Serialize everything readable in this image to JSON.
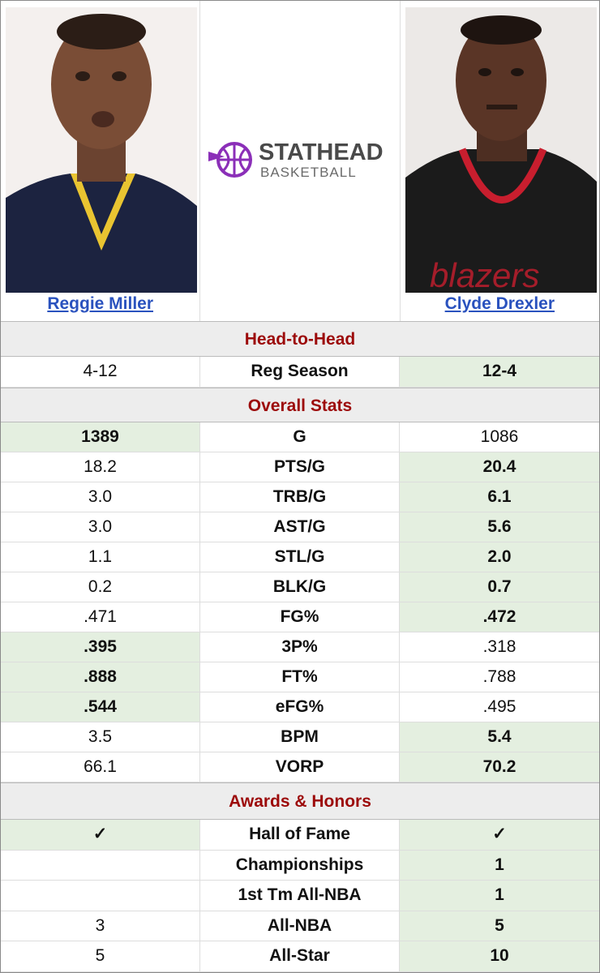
{
  "logo": {
    "line1": "STATHEAD",
    "line2": "BASKETBALL"
  },
  "players": [
    "Reggie Miller",
    "Clyde Drexler"
  ],
  "sections": [
    {
      "title": "Head-to-Head",
      "rows": [
        {
          "label": "Reg Season",
          "left": "4-12",
          "right": "12-4",
          "leader": "right"
        }
      ]
    },
    {
      "title": "Overall Stats",
      "rows": [
        {
          "label": "G",
          "left": "1389",
          "right": "1086",
          "leader": "left"
        },
        {
          "label": "PTS/G",
          "left": "18.2",
          "right": "20.4",
          "leader": "right"
        },
        {
          "label": "TRB/G",
          "left": "3.0",
          "right": "6.1",
          "leader": "right"
        },
        {
          "label": "AST/G",
          "left": "3.0",
          "right": "5.6",
          "leader": "right"
        },
        {
          "label": "STL/G",
          "left": "1.1",
          "right": "2.0",
          "leader": "right"
        },
        {
          "label": "BLK/G",
          "left": "0.2",
          "right": "0.7",
          "leader": "right"
        },
        {
          "label": "FG%",
          "left": ".471",
          "right": ".472",
          "leader": "right"
        },
        {
          "label": "3P%",
          "left": ".395",
          "right": ".318",
          "leader": "left"
        },
        {
          "label": "FT%",
          "left": ".888",
          "right": ".788",
          "leader": "left"
        },
        {
          "label": "eFG%",
          "left": ".544",
          "right": ".495",
          "leader": "left"
        },
        {
          "label": "BPM",
          "left": "3.5",
          "right": "5.4",
          "leader": "right"
        },
        {
          "label": "VORP",
          "left": "66.1",
          "right": "70.2",
          "leader": "right"
        }
      ]
    },
    {
      "title": "Awards & Honors",
      "rows": [
        {
          "label": "Hall of Fame",
          "left": "✓",
          "right": "✓",
          "leader": "both"
        },
        {
          "label": "Championships",
          "left": null,
          "right": "1",
          "leader": "right"
        },
        {
          "label": "1st Tm All-NBA",
          "left": null,
          "right": "1",
          "leader": "right"
        },
        {
          "label": "All-NBA",
          "left": "3",
          "right": "5",
          "leader": "right"
        },
        {
          "label": "All-Star",
          "left": "5",
          "right": "10",
          "leader": "right"
        }
      ]
    }
  ]
}
